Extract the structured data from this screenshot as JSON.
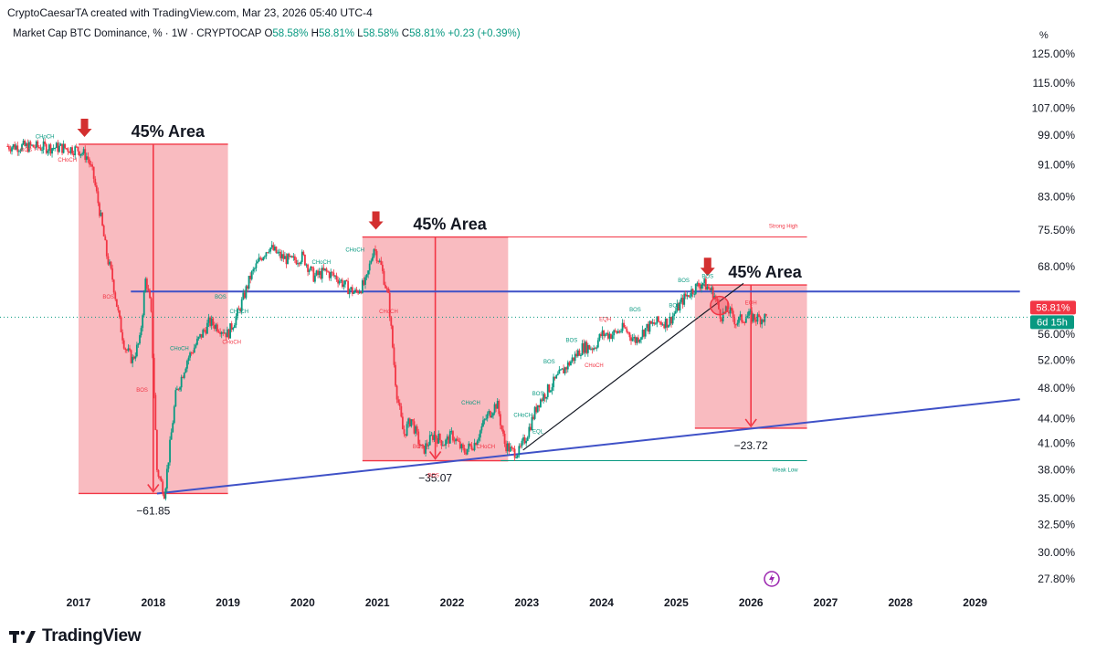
{
  "header": {
    "credit": "CryptoCaesarTA created with TradingView.com, Mar 23, 2026 05:40 UTC-4",
    "symbol": "Market Cap BTC Dominance, % · 1W · CRYPTOCAP",
    "o_label": "O",
    "o_value": "58.58%",
    "h_label": "H",
    "h_value": "58.81%",
    "l_label": "L",
    "l_value": "58.58%",
    "c_label": "C",
    "c_value": "58.81%",
    "change": "+0.23 (+0.39%)"
  },
  "price_axis": {
    "unit": "%",
    "ticks": [
      "125.00%",
      "115.00%",
      "107.00%",
      "99.00%",
      "91.00%",
      "83.00%",
      "75.50%",
      "68.00%",
      "56.00%",
      "52.00%",
      "48.00%",
      "44.00%",
      "41.00%",
      "38.00%",
      "35.00%",
      "32.50%",
      "30.00%",
      "27.80%"
    ],
    "tick_values": [
      125,
      115,
      107,
      99,
      91,
      83,
      75.5,
      68,
      56,
      52,
      48,
      44,
      41,
      38,
      35,
      32.5,
      30,
      27.8
    ],
    "current_price_label": "58.81%",
    "countdown_label": "6d 15h"
  },
  "time_axis": {
    "labels": [
      "2017",
      "2018",
      "2019",
      "2020",
      "2021",
      "2022",
      "2023",
      "2024",
      "2025",
      "2026",
      "2027",
      "2028",
      "2029"
    ]
  },
  "annotations": {
    "area_labels": [
      "45% Area",
      "45% Area",
      "45% Area"
    ],
    "drop_labels": [
      "−61.85",
      "−35.07",
      "−23.72"
    ],
    "strong_high": "Strong High",
    "weak_low": "Weak Low",
    "bos": "BOS",
    "choch": "CHoCH",
    "eqh": "EQH",
    "eql": "EQL"
  },
  "colors": {
    "up": "#089981",
    "down": "#f23645",
    "zone_fill": "#f7a1a8",
    "arrow": "#d32f2f",
    "trend_blue": "#3f51c7",
    "current_price_bg": "#f23645",
    "countdown_bg": "#089981"
  },
  "chart_data": {
    "type": "line",
    "title": "Market Cap BTC Dominance, % · 1W · CRYPTOCAP",
    "xlabel": "",
    "ylabel": "%",
    "scale": "log",
    "ylim": [
      27.8,
      125
    ],
    "xlim": [
      2016.0,
      2029.6
    ],
    "last": 58.81,
    "x": [
      2016.05,
      2016.4,
      2016.8,
      2017.0,
      2017.12,
      2017.2,
      2017.3,
      2017.38,
      2017.45,
      2017.55,
      2017.62,
      2017.72,
      2017.82,
      2017.9,
      2017.97,
      2018.05,
      2018.15,
      2018.3,
      2018.45,
      2018.6,
      2018.75,
      2018.9,
      2019.0,
      2019.15,
      2019.3,
      2019.45,
      2019.55,
      2019.7,
      2019.85,
      2020.0,
      2020.15,
      2020.3,
      2020.45,
      2020.6,
      2020.7,
      2020.85,
      2020.95,
      2021.05,
      2021.15,
      2021.25,
      2021.35,
      2021.45,
      2021.6,
      2021.75,
      2021.9,
      2022.0,
      2022.15,
      2022.3,
      2022.45,
      2022.6,
      2022.7,
      2022.8,
      2022.9,
      2023.0,
      2023.15,
      2023.3,
      2023.45,
      2023.6,
      2023.75,
      2023.9,
      2024.0,
      2024.15,
      2024.3,
      2024.45,
      2024.6,
      2024.75,
      2024.9,
      2025.0,
      2025.1,
      2025.25,
      2025.35,
      2025.5,
      2025.6,
      2025.7,
      2025.8,
      2025.95,
      2026.1,
      2026.22
    ],
    "values": [
      96,
      95.8,
      95.5,
      95,
      93,
      88,
      78,
      70,
      66,
      58,
      54,
      52,
      55,
      66,
      60,
      38,
      35.5,
      47,
      52,
      55,
      58,
      57,
      56,
      60,
      66,
      70,
      72,
      70,
      69,
      70,
      66,
      67,
      66,
      64,
      63,
      65,
      72,
      68,
      62,
      48,
      42,
      44,
      40,
      42,
      41,
      42,
      40,
      41,
      44,
      46,
      41,
      40,
      40,
      42,
      46,
      48,
      50,
      52,
      54,
      54,
      56,
      56,
      57,
      55,
      57,
      58,
      58,
      60,
      62,
      64,
      65,
      63,
      59,
      60,
      58,
      59,
      58.6,
      58.81
    ],
    "series": [
      {
        "name": "Upper horizontal (blue)",
        "values": [
          63.3,
          63.3
        ],
        "x": [
          2017.7,
          2029.6
        ]
      },
      {
        "name": "Rising support (blue)",
        "values": [
          35.5,
          46.5
        ],
        "x": [
          2018.05,
          2029.6
        ]
      },
      {
        "name": "Trendline (black)",
        "values": [
          40.2,
          64.8
        ],
        "x": [
          2022.95,
          2025.9
        ]
      }
    ],
    "zones": [
      {
        "label": "45% Area",
        "x": [
          2017.0,
          2019.0
        ],
        "y": [
          35.5,
          96.5
        ],
        "drop": "−61.85"
      },
      {
        "label": "45% Area",
        "x": [
          2020.8,
          2022.75
        ],
        "y": [
          39.0,
          74.0
        ],
        "drop": "−35.07"
      },
      {
        "label": "45% Area",
        "x": [
          2025.25,
          2026.75
        ],
        "y": [
          42.8,
          64.5
        ],
        "drop": "−23.72"
      }
    ],
    "levels": [
      {
        "label": "Strong High",
        "value": 74.0,
        "x": [
          2020.8,
          2026.75
        ]
      },
      {
        "label": "Weak Low",
        "value": 39.0,
        "x": [
          2022.65,
          2026.75
        ]
      }
    ]
  }
}
